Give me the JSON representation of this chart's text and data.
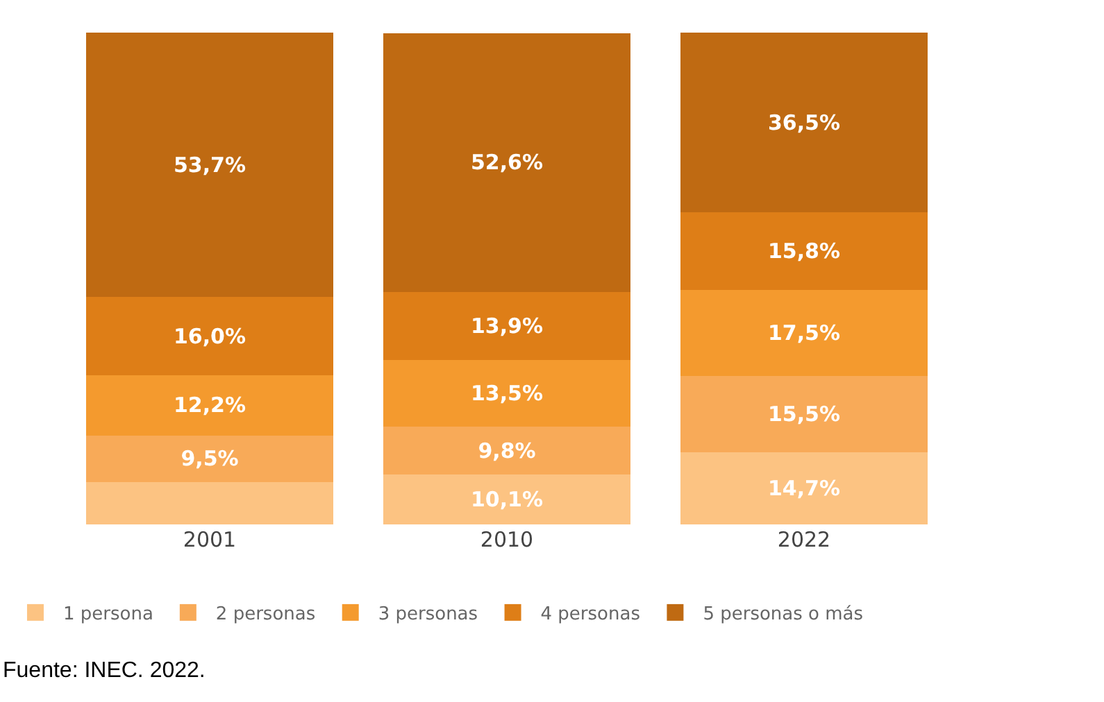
{
  "chart_data": {
    "type": "bar",
    "stacked": true,
    "categories": [
      "2001",
      "2010",
      "2022"
    ],
    "series": [
      {
        "name": "1 persona",
        "color": "#fcc382",
        "values": [
          8.6,
          10.1,
          14.7
        ],
        "value_labels": [
          null,
          "10,1%",
          "14,7%"
        ]
      },
      {
        "name": "2 personas",
        "color": "#f8aa58",
        "values": [
          9.5,
          9.8,
          15.5
        ],
        "value_labels": [
          "9,5%",
          "9,8%",
          "15,5%"
        ]
      },
      {
        "name": "3 personas",
        "color": "#f49a2e",
        "values": [
          12.2,
          13.5,
          17.5
        ],
        "value_labels": [
          "12,2%",
          "13,5%",
          "17,5%"
        ]
      },
      {
        "name": "4 personas",
        "color": "#de7e17",
        "values": [
          16.0,
          13.9,
          15.8
        ],
        "value_labels": [
          "16,0%",
          "13,9%",
          "15,8%"
        ]
      },
      {
        "name": "5 personas o más",
        "color": "#bf6a12",
        "values": [
          53.7,
          52.6,
          36.5
        ],
        "value_labels": [
          "53,7%",
          "52,6%",
          "36,5%"
        ]
      }
    ],
    "legend": "bottom",
    "annotations": [
      "Fuente: INEC. 2022."
    ]
  }
}
